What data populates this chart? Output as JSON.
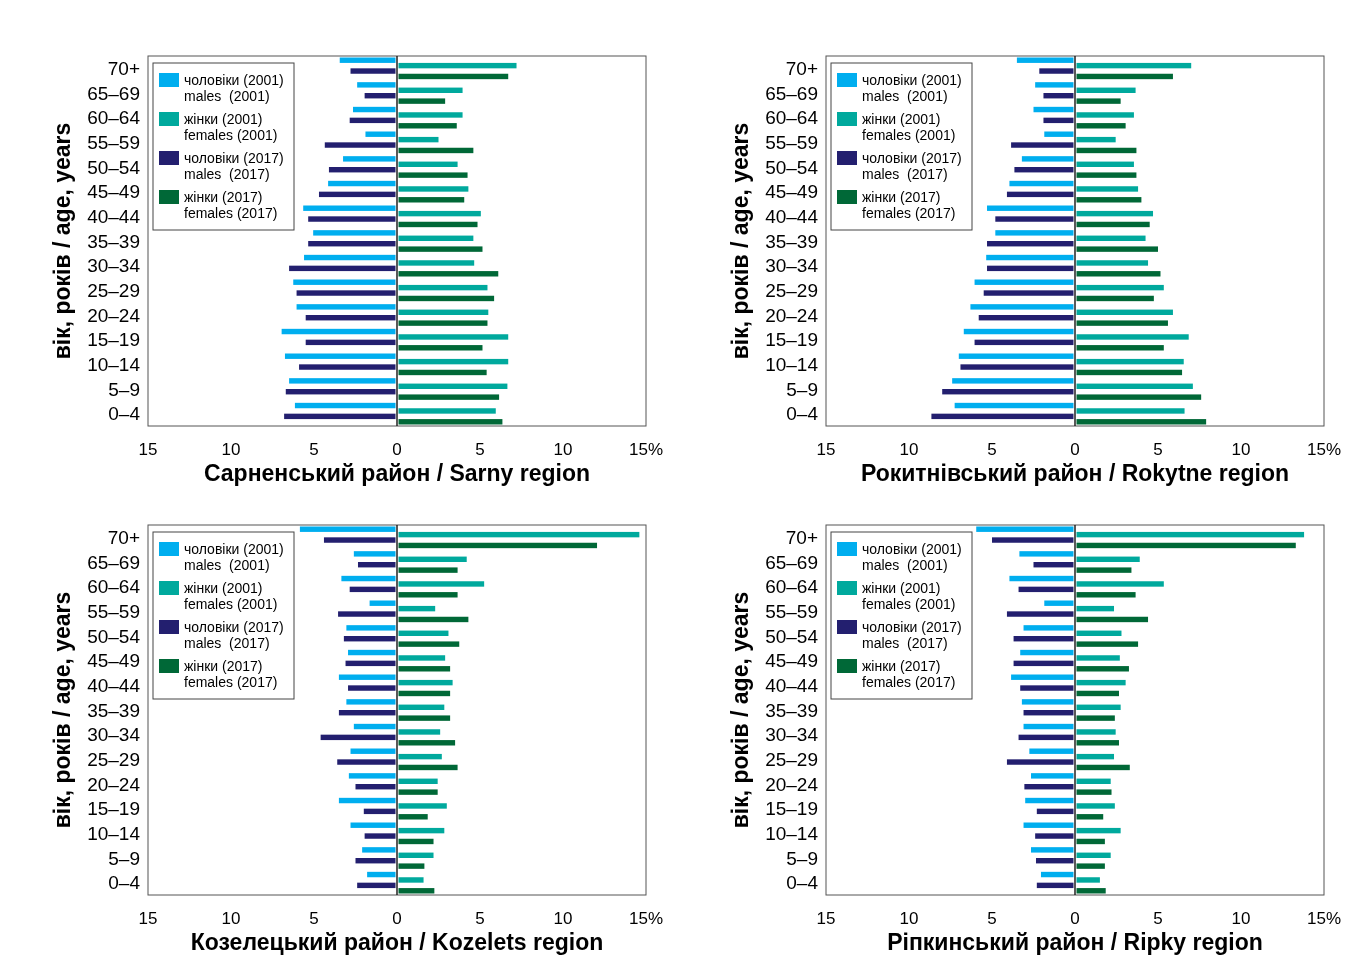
{
  "chart_data": [
    {
      "type": "bar",
      "orientation": "horizontal",
      "xlabel": "Сарненський район / Sarny region",
      "ylabel": "вік, років / age, years",
      "legend": "top left",
      "categories": [
        "70+",
        "65–69",
        "60–64",
        "55–59",
        "50–54",
        "45–49",
        "40–44",
        "35–39",
        "30–34",
        "25–29",
        "20–24",
        "15–19",
        "10–14",
        "5–9",
        "0–4"
      ],
      "xlim": [
        -15,
        15
      ],
      "xticks": [
        {
          "value": -15,
          "label": "15"
        },
        {
          "value": -10,
          "label": "10"
        },
        {
          "value": -5,
          "label": "5"
        },
        0,
        5,
        10,
        {
          "value": 15,
          "label": "15%"
        }
      ],
      "series": [
        {
          "name": "чоловіки (2001)\nmales  (2001)",
          "color": "#00aeef",
          "values": [
            -3.45,
            -2.4,
            -2.65,
            -1.9,
            -3.25,
            -4.15,
            -5.65,
            -5.05,
            -5.6,
            -6.25,
            -6.05,
            -6.95,
            -6.75,
            -6.5,
            -6.15
          ]
        },
        {
          "name": "жінки (2001)\nfemales (2001)",
          "color": "#00a99d",
          "values": [
            7.2,
            3.95,
            3.95,
            2.5,
            3.65,
            4.3,
            5.05,
            4.6,
            4.65,
            5.45,
            5.5,
            6.7,
            6.7,
            6.65,
            5.95
          ]
        },
        {
          "name": "чоловіки (2017)\nmales  (2017)",
          "color": "#231f6f",
          "values": [
            -2.8,
            -1.95,
            -2.85,
            -4.35,
            -4.1,
            -4.7,
            -5.35,
            -5.35,
            -6.5,
            -6.05,
            -5.5,
            -5.5,
            -5.9,
            -6.7,
            -6.8
          ]
        },
        {
          "name": "жінки (2017)\nfemales (2017)",
          "color": "#006837",
          "values": [
            6.7,
            2.9,
            3.6,
            4.6,
            4.25,
            4.05,
            4.85,
            5.15,
            6.1,
            5.85,
            5.45,
            5.15,
            5.4,
            6.15,
            6.35
          ]
        }
      ]
    },
    {
      "type": "bar",
      "orientation": "horizontal",
      "xlabel": "Рокитнівський район / Rokytne region",
      "ylabel": "вік, років / age, years",
      "legend": "top left",
      "categories": [
        "70+",
        "65–69",
        "60–64",
        "55–59",
        "50–54",
        "45–49",
        "40–44",
        "35–39",
        "30–34",
        "25–29",
        "20–24",
        "15–19",
        "10–14",
        "5–9",
        "0–4"
      ],
      "xlim": [
        -15,
        15
      ],
      "xticks": [
        {
          "value": -15,
          "label": "15"
        },
        {
          "value": -10,
          "label": "10"
        },
        {
          "value": -5,
          "label": "5"
        },
        0,
        5,
        10,
        {
          "value": 15,
          "label": "15%"
        }
      ],
      "series": [
        {
          "name": "чоловіки (2001)\nmales  (2001)",
          "color": "#00aeef",
          "values": [
            -3.5,
            -2.4,
            -2.5,
            -1.85,
            -3.2,
            -3.95,
            -5.3,
            -4.8,
            -5.35,
            -6.05,
            -6.3,
            -6.7,
            -7.0,
            -7.4,
            -7.25
          ]
        },
        {
          "name": "жінки (2001)\nfemales (2001)",
          "color": "#00a99d",
          "values": [
            7.0,
            3.65,
            3.55,
            2.45,
            3.55,
            3.8,
            4.7,
            4.25,
            4.4,
            5.35,
            5.9,
            6.85,
            6.55,
            7.1,
            6.6
          ]
        },
        {
          "name": "чоловіки (2017)\nmales  (2017)",
          "color": "#231f6f",
          "values": [
            -2.15,
            -1.9,
            -1.9,
            -3.85,
            -3.65,
            -4.1,
            -4.8,
            -5.3,
            -5.3,
            -5.5,
            -5.8,
            -6.05,
            -6.9,
            -8.0,
            -8.65
          ]
        },
        {
          "name": "жінки (2017)\nfemales (2017)",
          "color": "#006837",
          "values": [
            5.9,
            2.75,
            3.05,
            3.7,
            3.7,
            4.0,
            4.5,
            5.0,
            5.15,
            4.75,
            5.6,
            5.35,
            6.45,
            7.6,
            7.9
          ]
        }
      ]
    },
    {
      "type": "bar",
      "orientation": "horizontal",
      "xlabel": "Козелецький район / Kozelets region",
      "ylabel": "вік, років / age, years",
      "legend": "top left",
      "categories": [
        "70+",
        "65–69",
        "60–64",
        "55–59",
        "50–54",
        "45–49",
        "40–44",
        "35–39",
        "30–34",
        "25–29",
        "20–24",
        "15–19",
        "10–14",
        "5–9",
        "0–4"
      ],
      "xlim": [
        -15,
        15
      ],
      "xticks": [
        {
          "value": -15,
          "label": "15"
        },
        {
          "value": -10,
          "label": "10"
        },
        {
          "value": -5,
          "label": "5"
        },
        0,
        5,
        10,
        {
          "value": 15,
          "label": "15%"
        }
      ],
      "series": [
        {
          "name": "чоловіки (2001)\nmales  (2001)",
          "color": "#00aeef",
          "values": [
            -5.85,
            -2.6,
            -3.35,
            -1.65,
            -3.05,
            -2.95,
            -3.5,
            -3.05,
            -2.6,
            -2.8,
            -2.9,
            -3.5,
            -2.8,
            -2.1,
            -1.8
          ]
        },
        {
          "name": "жінки (2001)\nfemales (2001)",
          "color": "#00a99d",
          "values": [
            14.6,
            4.2,
            5.25,
            2.3,
            3.1,
            2.9,
            3.35,
            2.85,
            2.6,
            2.7,
            2.45,
            3.0,
            2.85,
            2.2,
            1.6
          ]
        },
        {
          "name": "чоловіки (2017)\nmales  (2017)",
          "color": "#231f6f",
          "values": [
            -4.4,
            -2.35,
            -2.85,
            -3.55,
            -3.2,
            -3.1,
            -2.95,
            -3.5,
            -4.6,
            -3.6,
            -2.5,
            -2.0,
            -1.95,
            -2.5,
            -2.4
          ]
        },
        {
          "name": "жінки (2017)\nfemales (2017)",
          "color": "#006837",
          "values": [
            12.05,
            3.65,
            3.65,
            4.3,
            3.75,
            3.2,
            3.2,
            3.2,
            3.5,
            3.65,
            2.45,
            1.85,
            2.2,
            1.65,
            2.25
          ]
        }
      ]
    },
    {
      "type": "bar",
      "orientation": "horizontal",
      "xlabel": "Ріпкинський район / Ripky region",
      "ylabel": "вік, років / age, years",
      "legend": "top left",
      "categories": [
        "70+",
        "65–69",
        "60–64",
        "55–59",
        "50–54",
        "45–49",
        "40–44",
        "35–39",
        "30–34",
        "25–29",
        "20–24",
        "15–19",
        "10–14",
        "5–9",
        "0–4"
      ],
      "xlim": [
        -15,
        15
      ],
      "xticks": [
        {
          "value": -15,
          "label": "15"
        },
        {
          "value": -10,
          "label": "10"
        },
        {
          "value": -5,
          "label": "5"
        },
        0,
        5,
        10,
        {
          "value": 15,
          "label": "15%"
        }
      ],
      "series": [
        {
          "name": "чоловіки (2001)\nmales  (2001)",
          "color": "#00aeef",
          "values": [
            -5.95,
            -3.35,
            -3.95,
            -1.85,
            -3.1,
            -3.3,
            -3.85,
            -3.2,
            -3.1,
            -2.75,
            -2.65,
            -3.0,
            -3.1,
            -2.65,
            -2.05
          ]
        },
        {
          "name": "жінки (2001)\nfemales (2001)",
          "color": "#00a99d",
          "values": [
            13.8,
            3.9,
            5.35,
            2.35,
            2.8,
            2.7,
            3.05,
            2.75,
            2.45,
            2.35,
            2.15,
            2.4,
            2.75,
            2.15,
            1.5
          ]
        },
        {
          "name": "чоловіки (2017)\nmales  (2017)",
          "color": "#231f6f",
          "values": [
            -5.0,
            -2.5,
            -3.4,
            -4.1,
            -3.7,
            -3.7,
            -3.3,
            -3.1,
            -3.4,
            -4.1,
            -3.05,
            -2.3,
            -2.4,
            -2.35,
            -2.3
          ]
        },
        {
          "name": "жінки (2017)\nfemales (2017)",
          "color": "#006837",
          "values": [
            13.3,
            3.4,
            3.65,
            4.4,
            3.8,
            3.25,
            2.65,
            2.4,
            2.65,
            3.3,
            2.2,
            1.7,
            1.8,
            1.8,
            1.85
          ]
        }
      ]
    }
  ]
}
